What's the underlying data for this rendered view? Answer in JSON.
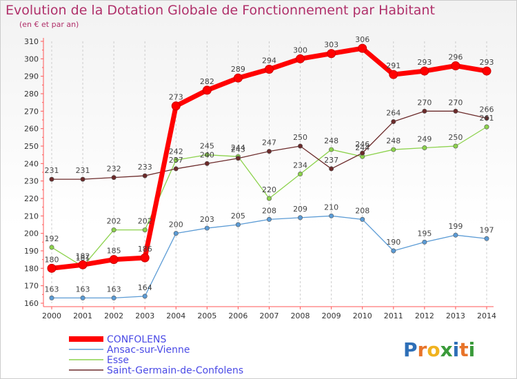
{
  "chart_data": {
    "type": "line",
    "title": "Evolution de la Dotation Globale de Fonctionnement par Habitant",
    "subtitle": "(en € et par an)",
    "categories": [
      "2000",
      "2001",
      "2002",
      "2003",
      "2004",
      "2005",
      "2006",
      "2007",
      "2008",
      "2009",
      "2010",
      "2011",
      "2012",
      "2013",
      "2014"
    ],
    "ylim": [
      160,
      310
    ],
    "yticks": [
      160,
      170,
      180,
      190,
      200,
      210,
      220,
      230,
      240,
      250,
      260,
      270,
      280,
      290,
      300,
      310
    ],
    "grid": "vertical-dashed",
    "legend_position": "bottom-left",
    "series": [
      {
        "name": "CONFOLENS",
        "color": "#ff0000",
        "values": [
          180,
          182,
          185,
          186,
          273,
          282,
          289,
          294,
          300,
          303,
          306,
          291,
          293,
          296,
          293
        ]
      },
      {
        "name": "Ansac-sur-Vienne",
        "color": "#5b9bd5",
        "values": [
          163,
          163,
          163,
          164,
          200,
          203,
          205,
          208,
          209,
          210,
          208,
          190,
          195,
          199,
          197
        ]
      },
      {
        "name": "Esse",
        "color": "#8cd24c",
        "values": [
          192,
          181,
          202,
          202,
          242,
          245,
          244,
          220,
          234,
          248,
          244,
          248,
          249,
          250,
          261
        ]
      },
      {
        "name": "Saint-Germain-de-Confolens",
        "color": "#6b2a2a",
        "values": [
          231,
          231,
          232,
          233,
          237,
          240,
          243,
          247,
          250,
          237,
          246,
          264,
          270,
          270,
          266
        ]
      }
    ]
  },
  "logo": {
    "text": "Proxiti",
    "letters": [
      "P",
      "r",
      "o",
      "x",
      "i",
      "t",
      "i"
    ],
    "colors": [
      "#2e6fb7",
      "#e8742a",
      "#f0b21e",
      "#3a9a3a",
      "#2e6fb7",
      "#e8742a",
      "#3a9a3a"
    ]
  }
}
